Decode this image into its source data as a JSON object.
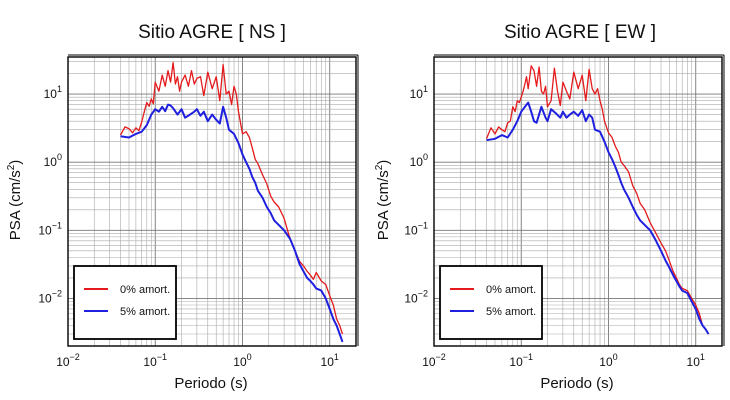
{
  "chart_data": [
    {
      "type": "line",
      "title": "Sitio AGRE [ NS ]",
      "xlabel": "Periodo (s)",
      "ylabel": "PSA (cm/s",
      "ylabel_sup": "2",
      "ylabel_close": ")",
      "xscale": "log",
      "yscale": "log",
      "xlim": [
        0.01,
        20
      ],
      "ylim": [
        0.002,
        35
      ],
      "grid": true,
      "legend_position": "bottom-left",
      "xticks": [
        {
          "mant": "10",
          "exp": "−2",
          "value": 0.01
        },
        {
          "mant": "10",
          "exp": "−1",
          "value": 0.1
        },
        {
          "mant": "10",
          "exp": "0",
          "value": 1
        },
        {
          "mant": "10",
          "exp": "1",
          "value": 10
        }
      ],
      "yticks": [
        {
          "mant": "10",
          "exp": "−2",
          "value": 0.01
        },
        {
          "mant": "10",
          "exp": "−1",
          "value": 0.1
        },
        {
          "mant": "10",
          "exp": "0",
          "value": 1
        },
        {
          "mant": "10",
          "exp": "1",
          "value": 10
        }
      ],
      "series": [
        {
          "name": "0% amort.",
          "color": "#e41a1c",
          "x": [
            0.04,
            0.045,
            0.05,
            0.055,
            0.06,
            0.065,
            0.07,
            0.075,
            0.08,
            0.085,
            0.09,
            0.095,
            0.1,
            0.11,
            0.12,
            0.13,
            0.14,
            0.15,
            0.16,
            0.17,
            0.18,
            0.19,
            0.2,
            0.22,
            0.24,
            0.26,
            0.28,
            0.3,
            0.33,
            0.36,
            0.4,
            0.45,
            0.5,
            0.55,
            0.6,
            0.65,
            0.7,
            0.75,
            0.8,
            0.85,
            0.9,
            1,
            1.1,
            1.2,
            1.3,
            1.4,
            1.5,
            1.7,
            1.9,
            2.1,
            2.3,
            2.6,
            3,
            3.4,
            4,
            4.5,
            5,
            5.5,
            6,
            6.5,
            7,
            8,
            9,
            10,
            11,
            12,
            13,
            14
          ],
          "y": [
            2.5,
            3.3,
            3.1,
            2.7,
            3.2,
            2.9,
            3.9,
            5.5,
            7.5,
            6.6,
            8.5,
            7.2,
            15,
            11,
            19,
            13,
            22,
            15,
            29,
            14,
            18,
            11,
            15,
            19,
            13,
            22,
            14,
            17,
            18,
            9.5,
            21,
            12,
            18,
            8,
            27,
            10,
            11,
            7,
            13,
            10,
            5.5,
            2.6,
            2.8,
            2.3,
            1.6,
            1.1,
            0.95,
            0.65,
            0.48,
            0.32,
            0.26,
            0.22,
            0.15,
            0.085,
            0.05,
            0.035,
            0.03,
            0.025,
            0.022,
            0.019,
            0.024,
            0.018,
            0.016,
            0.011,
            0.008,
            0.005,
            0.004,
            0.003
          ]
        },
        {
          "name": "5% amort.",
          "color": "#1f1fe0",
          "x": [
            0.04,
            0.05,
            0.06,
            0.07,
            0.08,
            0.09,
            0.1,
            0.11,
            0.12,
            0.13,
            0.14,
            0.15,
            0.16,
            0.18,
            0.2,
            0.22,
            0.25,
            0.28,
            0.3,
            0.33,
            0.36,
            0.4,
            0.45,
            0.5,
            0.55,
            0.6,
            0.65,
            0.7,
            0.8,
            0.9,
            1,
            1.1,
            1.2,
            1.3,
            1.4,
            1.5,
            1.7,
            1.9,
            2.1,
            2.3,
            2.6,
            3,
            3.5,
            4,
            4.5,
            5,
            5.5,
            6,
            6.5,
            7,
            8,
            9,
            10,
            11,
            12,
            13,
            14
          ],
          "y": [
            2.4,
            2.3,
            2.6,
            2.8,
            3.5,
            5.0,
            6.0,
            5.5,
            6.5,
            5.6,
            7.0,
            6.8,
            6.2,
            5.0,
            6.0,
            4.5,
            5.0,
            5.5,
            6.0,
            4.8,
            5.5,
            4.0,
            5.0,
            4.2,
            3.7,
            6.5,
            4.5,
            3.0,
            2.6,
            1.9,
            1.3,
            1.0,
            0.8,
            0.6,
            0.5,
            0.38,
            0.3,
            0.22,
            0.18,
            0.14,
            0.12,
            0.1,
            0.075,
            0.05,
            0.032,
            0.025,
            0.02,
            0.018,
            0.016,
            0.014,
            0.013,
            0.01,
            0.007,
            0.005,
            0.004,
            0.003,
            0.0023
          ]
        }
      ]
    },
    {
      "type": "line",
      "title": "Sitio AGRE [ EW ]",
      "xlabel": "Periodo (s)",
      "ylabel": "PSA (cm/s",
      "ylabel_sup": "2",
      "ylabel_close": ")",
      "xscale": "log",
      "yscale": "log",
      "xlim": [
        0.01,
        20
      ],
      "ylim": [
        0.002,
        35
      ],
      "grid": true,
      "legend_position": "bottom-left",
      "xticks": [
        {
          "mant": "10",
          "exp": "−2",
          "value": 0.01
        },
        {
          "mant": "10",
          "exp": "−1",
          "value": 0.1
        },
        {
          "mant": "10",
          "exp": "0",
          "value": 1
        },
        {
          "mant": "10",
          "exp": "1",
          "value": 10
        }
      ],
      "yticks": [
        {
          "mant": "10",
          "exp": "−2",
          "value": 0.01
        },
        {
          "mant": "10",
          "exp": "−1",
          "value": 0.1
        },
        {
          "mant": "10",
          "exp": "0",
          "value": 1
        },
        {
          "mant": "10",
          "exp": "1",
          "value": 10
        }
      ],
      "series": [
        {
          "name": "0% amort.",
          "color": "#e41a1c",
          "x": [
            0.04,
            0.045,
            0.05,
            0.055,
            0.06,
            0.065,
            0.07,
            0.075,
            0.08,
            0.085,
            0.09,
            0.095,
            0.1,
            0.105,
            0.11,
            0.115,
            0.12,
            0.13,
            0.14,
            0.15,
            0.16,
            0.17,
            0.18,
            0.19,
            0.2,
            0.22,
            0.24,
            0.26,
            0.28,
            0.3,
            0.33,
            0.36,
            0.4,
            0.45,
            0.5,
            0.55,
            0.6,
            0.65,
            0.7,
            0.75,
            0.8,
            0.85,
            0.9,
            1,
            1.1,
            1.2,
            1.3,
            1.4,
            1.5,
            1.7,
            1.9,
            2.1,
            2.3,
            2.6,
            3,
            3.5,
            4,
            4.5,
            5,
            5.5,
            6,
            6.5,
            7,
            8,
            9,
            10,
            11,
            12,
            13,
            14
          ],
          "y": [
            2.2,
            3.2,
            2.6,
            3.3,
            3.0,
            2.8,
            3.8,
            4.0,
            6.5,
            5.5,
            8.0,
            7.5,
            9.0,
            11,
            14,
            18,
            12,
            26,
            22,
            13,
            25,
            11,
            10,
            13,
            6.5,
            8,
            24,
            11,
            6.8,
            15,
            11,
            8.5,
            21,
            12,
            19,
            8,
            23,
            12,
            10,
            12,
            8,
            6,
            4,
            2.7,
            2.3,
            1.7,
            1.4,
            1.0,
            0.9,
            0.72,
            0.45,
            0.35,
            0.25,
            0.2,
            0.13,
            0.09,
            0.065,
            0.05,
            0.035,
            0.025,
            0.02,
            0.016,
            0.014,
            0.013,
            0.01,
            0.008,
            0.006,
            0.004,
            0.0035,
            0.003
          ]
        },
        {
          "name": "5% amort.",
          "color": "#1f1fe0",
          "x": [
            0.04,
            0.05,
            0.06,
            0.07,
            0.08,
            0.09,
            0.1,
            0.11,
            0.12,
            0.13,
            0.14,
            0.15,
            0.17,
            0.19,
            0.2,
            0.22,
            0.25,
            0.28,
            0.3,
            0.33,
            0.36,
            0.4,
            0.45,
            0.5,
            0.55,
            0.6,
            0.65,
            0.7,
            0.8,
            0.9,
            1,
            1.1,
            1.2,
            1.3,
            1.4,
            1.5,
            1.7,
            1.9,
            2.1,
            2.3,
            2.6,
            3,
            3.5,
            4,
            4.5,
            5,
            5.5,
            6,
            6.5,
            7,
            8,
            9,
            10,
            11,
            12,
            13,
            14
          ],
          "y": [
            2.1,
            2.2,
            2.5,
            2.3,
            3.0,
            4.0,
            5.5,
            6.5,
            7.5,
            5.5,
            4.0,
            3.8,
            6.5,
            4.5,
            4.0,
            6.0,
            5.2,
            4.5,
            5.5,
            4.5,
            5.0,
            5.5,
            4.8,
            5.8,
            4.0,
            5.0,
            4.5,
            3.0,
            2.8,
            2.0,
            1.4,
            1.1,
            0.85,
            0.65,
            0.5,
            0.4,
            0.3,
            0.22,
            0.17,
            0.14,
            0.12,
            0.1,
            0.07,
            0.05,
            0.036,
            0.028,
            0.022,
            0.018,
            0.015,
            0.013,
            0.012,
            0.009,
            0.007,
            0.005,
            0.004,
            0.0035,
            0.003
          ]
        }
      ]
    }
  ]
}
